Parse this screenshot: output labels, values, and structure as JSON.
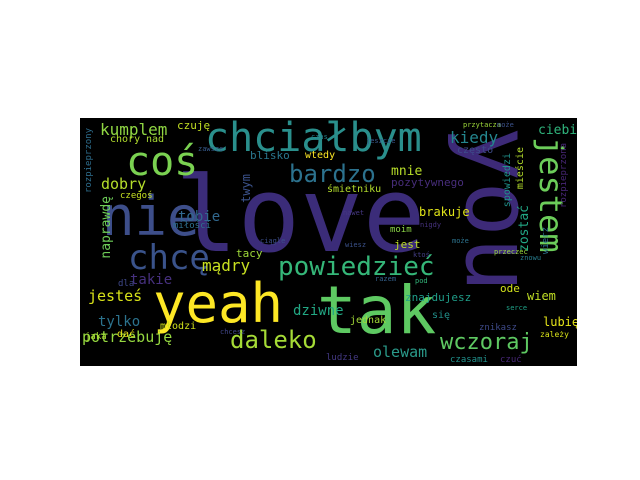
{
  "words": [
    {
      "text": "love",
      "color": "#3b2c79"
    },
    {
      "text": "you",
      "color": "#3d2a78"
    },
    {
      "text": "tak",
      "color": "#5ec962"
    },
    {
      "text": "yeah",
      "color": "#fde725"
    },
    {
      "text": "nie",
      "color": "#3d4e8a"
    },
    {
      "text": "chciałbym",
      "color": "#2a8f8c"
    },
    {
      "text": "coś",
      "color": "#7ad151"
    },
    {
      "text": "jestem",
      "color": "#6ccd5a"
    },
    {
      "text": "chcę",
      "color": "#3a538b"
    },
    {
      "text": "powiedzieć",
      "color": "#35b779"
    },
    {
      "text": "bardzo",
      "color": "#2c728e"
    },
    {
      "text": "daleko",
      "color": "#a5db36"
    },
    {
      "text": "wczoraj",
      "color": "#5ec962"
    },
    {
      "text": "kumplem",
      "color": "#90d743"
    },
    {
      "text": "kiedy",
      "color": "#24868e"
    },
    {
      "text": "mądry",
      "color": "#c8e020"
    },
    {
      "text": "dobry",
      "color": "#b5de2b"
    },
    {
      "text": "jesteś",
      "color": "#d8e219"
    },
    {
      "text": "potrzebuję",
      "color": "#95d840"
    },
    {
      "text": "olewam",
      "color": "#2a9a8a"
    },
    {
      "text": "tylko",
      "color": "#2c738e"
    },
    {
      "text": "dziwne",
      "color": "#22a884"
    },
    {
      "text": "tobie",
      "color": "#31688e"
    },
    {
      "text": "takie",
      "color": "#46307e"
    },
    {
      "text": "naprawdę",
      "color": "#6ece58"
    },
    {
      "text": "ciebie",
      "color": "#2fb47c"
    },
    {
      "text": "mnie",
      "color": "#b8de29"
    },
    {
      "text": "pozytywnego",
      "color": "#472d7b"
    },
    {
      "text": "twym",
      "color": "#3b528b"
    },
    {
      "text": "zostać",
      "color": "#22a785"
    },
    {
      "text": "wiem",
      "color": "#c0df25"
    },
    {
      "text": "lubię",
      "color": "#e5e419"
    },
    {
      "text": "brakuje",
      "color": "#dfe318"
    },
    {
      "text": "czuję",
      "color": "#c2df23"
    },
    {
      "text": "chory",
      "color": "#b2dd2d"
    },
    {
      "text": "nad",
      "color": "#a8db34"
    },
    {
      "text": "blisko",
      "color": "#2a768e"
    },
    {
      "text": "wtedy",
      "color": "#fde725"
    },
    {
      "text": "śmietniku",
      "color": "#b4de2c"
    },
    {
      "text": "jest",
      "color": "#bddf26"
    },
    {
      "text": "moim",
      "color": "#8bd646"
    },
    {
      "text": "tacy",
      "color": "#9fda3a"
    },
    {
      "text": "ode",
      "color": "#d2e21b"
    },
    {
      "text": "się",
      "color": "#21918c"
    },
    {
      "text": "jednak",
      "color": "#a2da37"
    },
    {
      "text": "znajdujesz",
      "color": "#1f9e89"
    },
    {
      "text": "znikasz",
      "color": "#3e4a89"
    },
    {
      "text": "czasami",
      "color": "#21918c"
    },
    {
      "text": "czuć",
      "color": "#482878"
    },
    {
      "text": "ludzie",
      "color": "#443983"
    },
    {
      "text": "młodzi",
      "color": "#d0e11c"
    },
    {
      "text": "jaka",
      "color": "#aadc32"
    },
    {
      "text": "dać",
      "color": "#e7e419"
    },
    {
      "text": "dla",
      "color": "#3f4889"
    },
    {
      "text": "czegoś",
      "color": "#c5e021"
    },
    {
      "text": "miłości",
      "color": "#2e6f8e"
    },
    {
      "text": "często",
      "color": "#3e4c8a"
    },
    {
      "text": "spowiedzi",
      "color": "#20928c"
    },
    {
      "text": "mieście",
      "color": "#b5de2b"
    },
    {
      "text": "rozpieprzony",
      "color": "#2e6e8e"
    },
    {
      "text": "rozpieprzona",
      "color": "#482677"
    },
    {
      "text": "zależy",
      "color": "#d8e219"
    },
    {
      "text": "nawet",
      "color": "#453781"
    },
    {
      "text": "nigdy",
      "color": "#46327e"
    },
    {
      "text": "razem",
      "color": "#34618d"
    },
    {
      "text": "wiesz",
      "color": "#3b528b"
    },
    {
      "text": "ktoś",
      "color": "#433e85"
    },
    {
      "text": "ciągle",
      "color": "#3c4f8a"
    },
    {
      "text": "jeszcze",
      "color": "#38588c"
    },
    {
      "text": "zawsze",
      "color": "#365c8d"
    },
    {
      "text": "chcesz",
      "color": "#404688"
    },
    {
      "text": "wierz",
      "color": "#2c728e"
    },
    {
      "text": "czas",
      "color": "#25848e"
    },
    {
      "text": "serce",
      "color": "#1fa187"
    },
    {
      "text": "znowu",
      "color": "#287d8e"
    },
    {
      "text": "przeczeć",
      "color": "#9bd93c"
    },
    {
      "text": "pod",
      "color": "#32b67a"
    },
    {
      "text": "przytacza",
      "color": "#9fda3a"
    },
    {
      "text": "może",
      "color": "#3b528b"
    },
    {
      "text": "może",
      "color": "#2c738e"
    }
  ]
}
